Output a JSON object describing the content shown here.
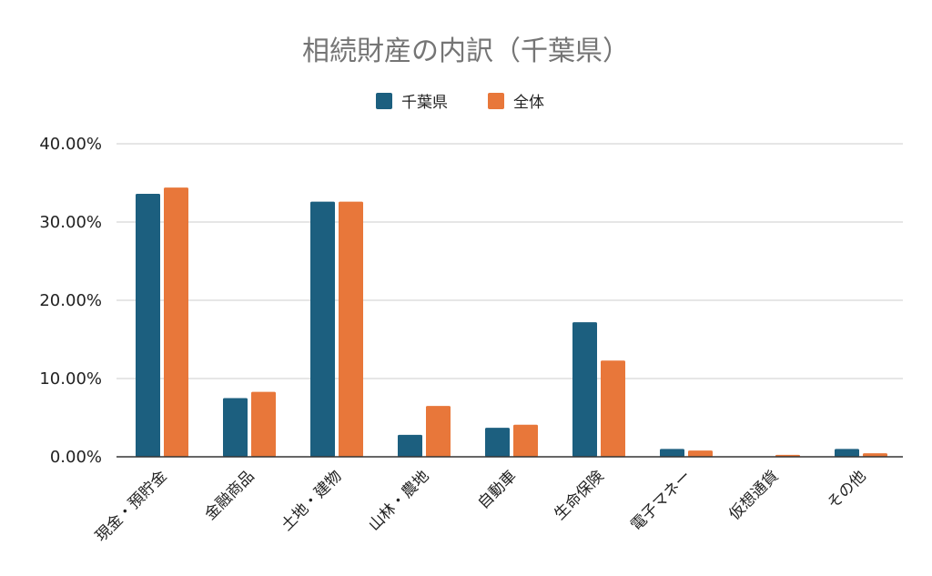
{
  "chart_data": {
    "type": "bar",
    "title": "相続財産の内訳（千葉県）",
    "categories": [
      "現金・預貯金",
      "金融商品",
      "土地・建物",
      "山林・農地",
      "自動車",
      "生命保険",
      "電子マネー",
      "仮想通貨",
      "その他"
    ],
    "series": [
      {
        "name": "千葉県",
        "color": "#1c5f7f",
        "values": [
          33.6,
          7.5,
          32.6,
          2.8,
          3.7,
          17.2,
          1.0,
          0.0,
          1.0
        ]
      },
      {
        "name": "全体",
        "color": "#e8773a",
        "values": [
          34.4,
          8.3,
          32.6,
          6.5,
          4.1,
          12.3,
          0.8,
          0.25,
          0.45
        ]
      }
    ],
    "yticks": [
      "0.00%",
      "10.00%",
      "20.00%",
      "30.00%",
      "40.00%"
    ],
    "ylim": [
      0,
      40
    ],
    "xlabel": "",
    "ylabel": "",
    "grid": true,
    "legend_position": "top-center"
  }
}
